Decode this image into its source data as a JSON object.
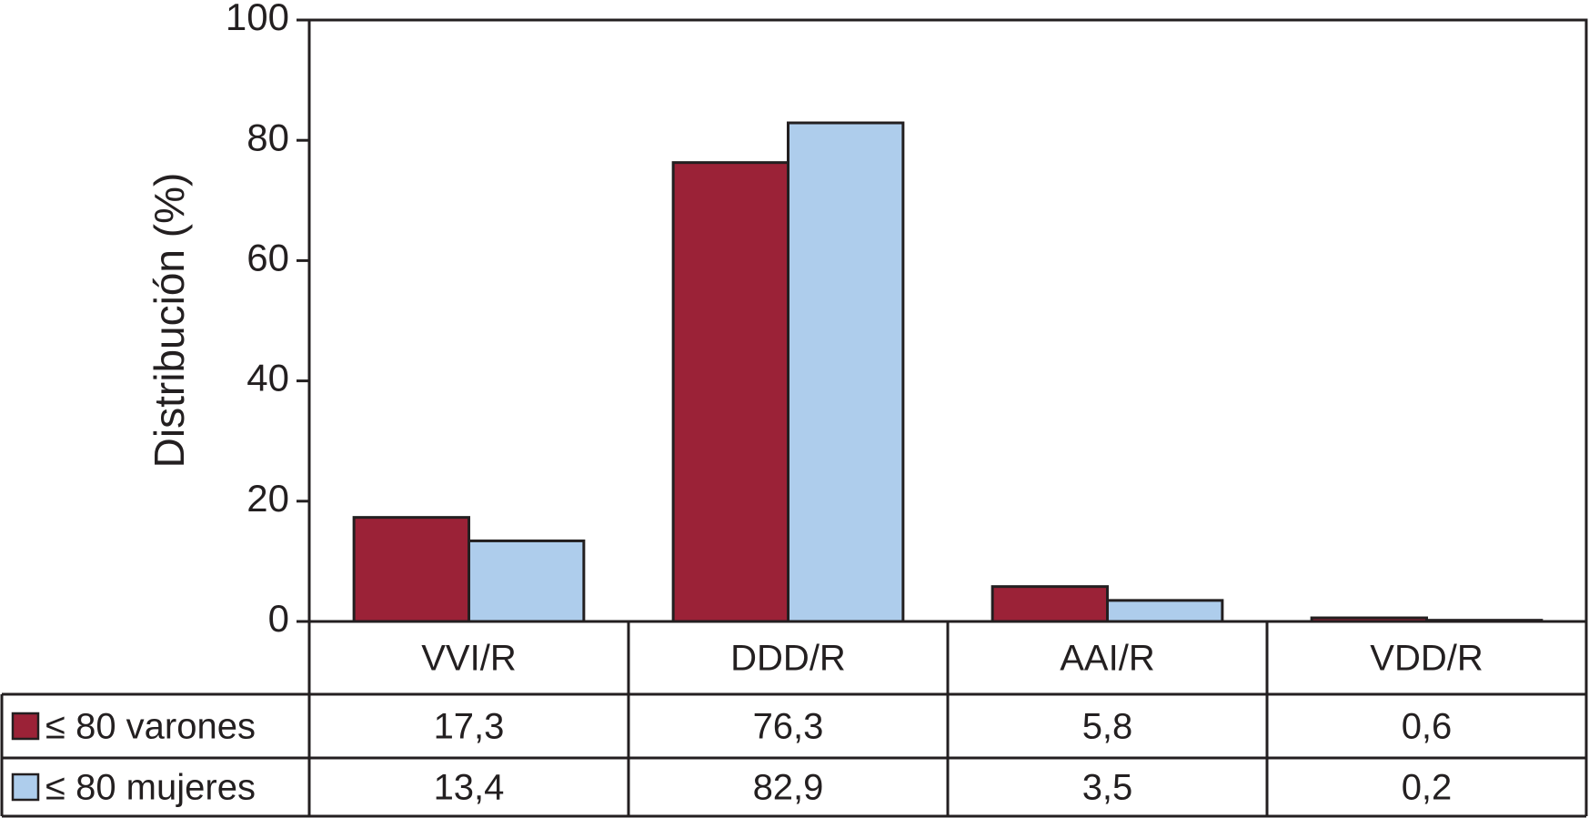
{
  "chart_data": {
    "type": "bar",
    "y_label": "Distribución (%)",
    "categories": [
      "VVI/R",
      "DDD/R",
      "AAI/R",
      "VDD/R"
    ],
    "series": [
      {
        "name": "≤ 80 varones",
        "color": "#9b2237",
        "values": [
          17.3,
          76.3,
          5.8,
          0.6
        ],
        "value_labels": [
          "17,3",
          "76,3",
          "5,8",
          "0,6"
        ]
      },
      {
        "name": "≤ 80 mujeres",
        "color": "#aecdec",
        "values": [
          13.4,
          82.9,
          3.5,
          0.2
        ],
        "value_labels": [
          "13,4",
          "82,9",
          "3,5",
          "0,2"
        ]
      }
    ],
    "ylim": [
      0,
      100
    ],
    "yticks": [
      0,
      20,
      40,
      60,
      80,
      100
    ]
  }
}
